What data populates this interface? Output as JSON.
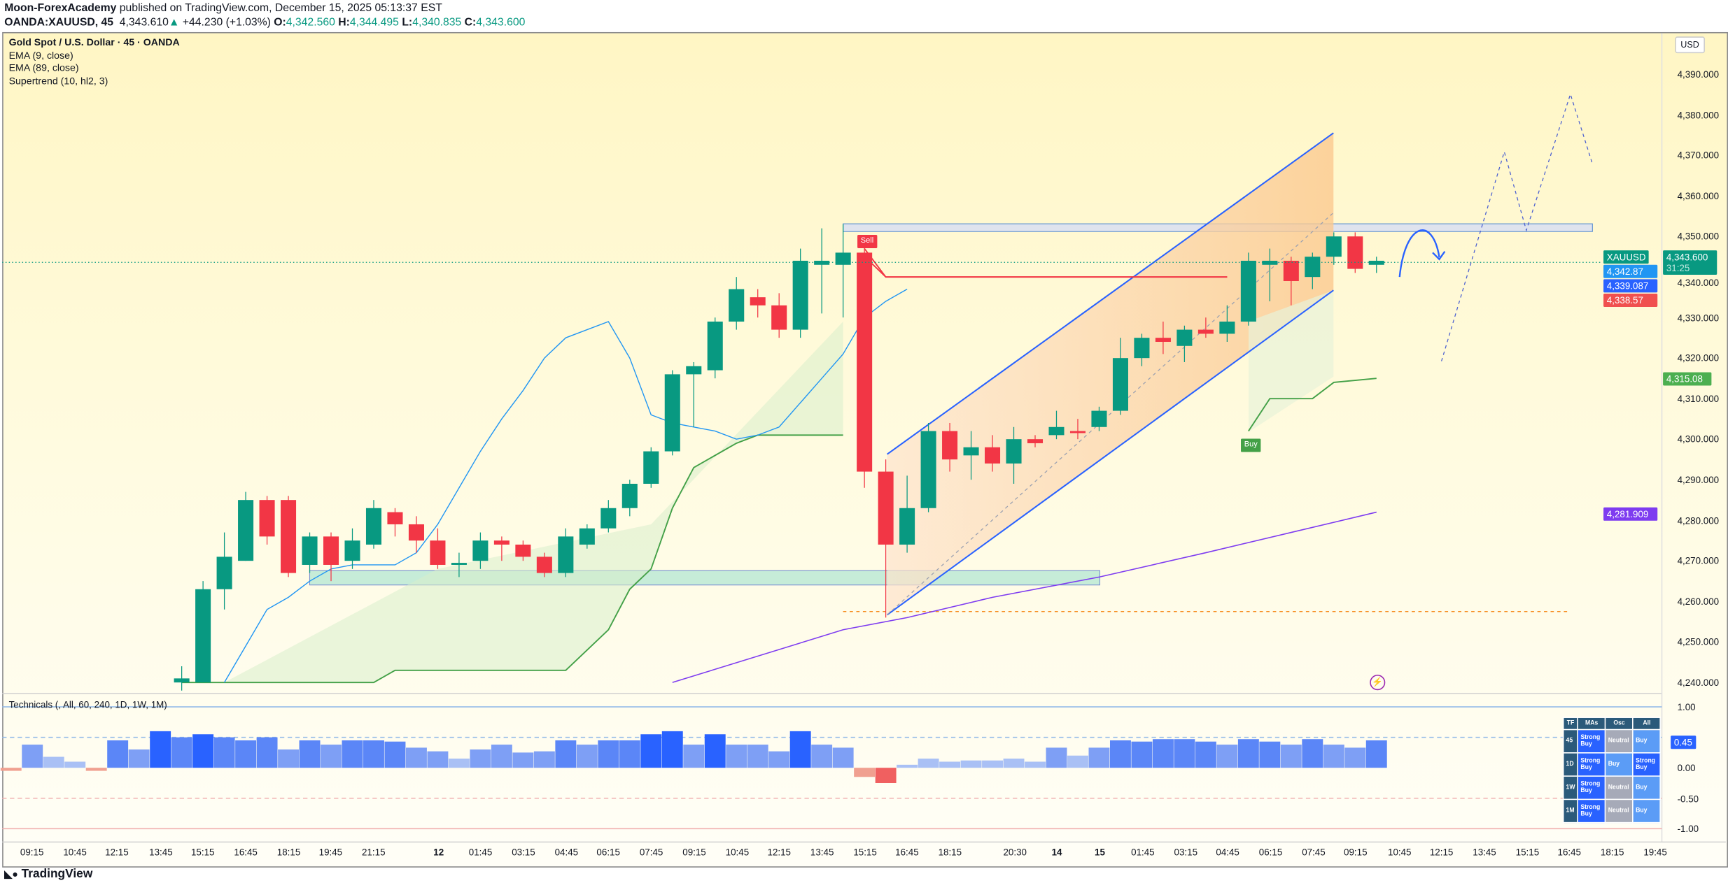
{
  "header": {
    "author": "Moon-ForexAcademy",
    "published": "published on TradingView.com, December 15, 2025 05:13:37 EST",
    "symbol": "OANDA:XAUUSD, 45",
    "last": "4,343.610",
    "arrow": "▲",
    "change": "+44.230 (+1.03%)",
    "o_label": "O:",
    "o": "4,342.560",
    "h_label": "H:",
    "h": "4,344.495",
    "l_label": "L:",
    "l": "4,340.835",
    "c_label": "C:",
    "c": "4,343.600"
  },
  "legend": {
    "title": "Gold Spot / U.S. Dollar · 45 · OANDA",
    "ema9": "EMA (9, close)",
    "ema89": "EMA (89, close)",
    "supertrend": "Supertrend (10, hl2, 3)"
  },
  "currency_button": "USD",
  "price_axis": [
    "4,390.000",
    "4,380.000",
    "4,370.000",
    "4,360.000",
    "4,350.000",
    "4,340.000",
    "4,330.000",
    "4,320.000",
    "4,310.000",
    "4,300.000",
    "4,290.000",
    "4,280.000",
    "4,270.000",
    "4,260.000",
    "4,250.000",
    "4,240.000"
  ],
  "badges": {
    "symbol": "XAUUSD",
    "price": "4,343.600",
    "countdown": "31:25",
    "ema9": "4,342.87",
    "ema89_near": "4,339.087",
    "st_red": "4,338.57",
    "st_green": "4,315.08",
    "ema89": "4,281.909"
  },
  "colors": {
    "up": "#089981",
    "down": "#f23645",
    "ema9": "#2196f3",
    "ema89": "#7e3cf0",
    "st_up": "#43a047",
    "st_down": "#f23645",
    "channel": "#2962ff"
  },
  "labels": {
    "sell": "Sell",
    "buy": "Buy"
  },
  "technicals": {
    "title": "Technicals (, All, 60, 240, 1D, 1W, 1M)",
    "axis": [
      "1.00",
      "0.00",
      "-0.50",
      "-1.00"
    ],
    "current": "0.45",
    "table": {
      "headers": [
        "TF",
        "MAs",
        "Osc",
        "All"
      ],
      "rows": [
        [
          "45",
          "Strong Buy",
          "Neutral",
          "Buy"
        ],
        [
          "1D",
          "Strong Buy",
          "Buy",
          "Strong Buy"
        ],
        [
          "1W",
          "Strong Buy",
          "Neutral",
          "Buy"
        ],
        [
          "1M",
          "Strong Buy",
          "Neutral",
          "Buy"
        ]
      ]
    }
  },
  "time_axis": [
    "09:15",
    "10:45",
    "12:15",
    "13:45",
    "15:15",
    "16:45",
    "18:15",
    "19:45",
    "21:15",
    "12",
    "01:45",
    "03:15",
    "04:45",
    "06:15",
    "07:45",
    "09:15",
    "10:45",
    "12:15",
    "13:45",
    "15:15",
    "16:45",
    "18:15",
    "20:30",
    "14",
    "15",
    "01:45",
    "03:15",
    "04:45",
    "06:15",
    "07:45",
    "09:15",
    "10:45",
    "12:15",
    "13:45",
    "15:15",
    "16:45",
    "18:15",
    "19:45"
  ],
  "brand": "TradingView",
  "chart_data": {
    "type": "candlestick",
    "ylim": [
      4240,
      4390
    ],
    "candles_ohlc": [
      [
        4240,
        4244,
        4238,
        4241
      ],
      [
        4240,
        4265,
        4240,
        4263
      ],
      [
        4263,
        4277,
        4258,
        4271
      ],
      [
        4270,
        4287,
        4270,
        4285
      ],
      [
        4285,
        4286,
        4274,
        4276
      ],
      [
        4285,
        4286,
        4266,
        4267
      ],
      [
        4269,
        4277,
        4267,
        4276
      ],
      [
        4276,
        4277,
        4265,
        4269
      ],
      [
        4270,
        4278,
        4268,
        4275
      ],
      [
        4274,
        4285,
        4273,
        4283
      ],
      [
        4282,
        4283,
        4276,
        4279
      ],
      [
        4279,
        4281,
        4272,
        4275
      ],
      [
        4275,
        4278,
        4268,
        4269
      ],
      [
        4269,
        4272,
        4266,
        4269.5
      ],
      [
        4270,
        4277,
        4268,
        4275
      ],
      [
        4275,
        4276,
        4270,
        4274
      ],
      [
        4274,
        4275,
        4270,
        4271
      ],
      [
        4271,
        4272,
        4266,
        4267
      ],
      [
        4267,
        4278,
        4266,
        4276
      ],
      [
        4274,
        4279,
        4273,
        4278
      ],
      [
        4278,
        4285,
        4277,
        4283
      ],
      [
        4283,
        4290,
        4281,
        4289
      ],
      [
        4289,
        4298,
        4288,
        4297
      ],
      [
        4297,
        4317,
        4296,
        4316
      ],
      [
        4316,
        4319,
        4303,
        4318
      ],
      [
        4317,
        4330,
        4315,
        4329
      ],
      [
        4329,
        4340,
        4327,
        4337
      ],
      [
        4335,
        4337,
        4330,
        4333
      ],
      [
        4333,
        4336,
        4325,
        4327
      ],
      [
        4327,
        4347,
        4325,
        4344
      ],
      [
        4343,
        4352,
        4331,
        4344
      ],
      [
        4343,
        4353,
        4330,
        4346
      ],
      [
        4346,
        4349,
        4288,
        4292
      ],
      [
        4292,
        4295,
        4256,
        4274
      ],
      [
        4274,
        4291,
        4272,
        4283
      ],
      [
        4283,
        4304,
        4282,
        4302
      ],
      [
        4302,
        4304,
        4292,
        4295
      ],
      [
        4296,
        4302,
        4290,
        4298
      ],
      [
        4298,
        4301,
        4292,
        4294
      ],
      [
        4294,
        4303,
        4289,
        4300
      ],
      [
        4300,
        4301,
        4298,
        4299
      ],
      [
        4301,
        4307,
        4300,
        4303
      ],
      [
        4302,
        4305,
        4300,
        4301.5
      ],
      [
        4303,
        4308,
        4302,
        4307
      ],
      [
        4307,
        4325,
        4306,
        4320
      ],
      [
        4320,
        4326,
        4318,
        4325
      ],
      [
        4325,
        4329,
        4321,
        4324
      ],
      [
        4323,
        4328,
        4319,
        4327
      ],
      [
        4327,
        4330,
        4325,
        4326
      ],
      [
        4326,
        4333,
        4324,
        4329
      ],
      [
        4329,
        4346,
        4328,
        4344
      ],
      [
        4343,
        4347,
        4334,
        4344
      ],
      [
        4344,
        4345,
        4333,
        4339
      ],
      [
        4340,
        4346,
        4337,
        4345
      ],
      [
        4345,
        4351,
        4343,
        4350
      ],
      [
        4350,
        4351,
        4341,
        4342
      ],
      [
        4343,
        4345,
        4341,
        4344
      ]
    ],
    "ema9": [
      4240,
      4249,
      4258,
      4261,
      4265,
      4268,
      4269,
      4269,
      4269,
      4272,
      4279,
      4288,
      4297,
      4305,
      4312,
      4320,
      4325,
      4327,
      4329,
      4320,
      4306,
      4304,
      4303,
      4302,
      4300,
      4301,
      4303,
      4309,
      4315,
      4321,
      4330,
      4334,
      4337
    ],
    "ema89": [
      4240,
      4253,
      4256,
      4261,
      4266,
      4272,
      4277,
      4282
    ],
    "supertrend_up_1": [
      4240,
      4240,
      4243,
      4243,
      4248,
      4253,
      4263,
      4268,
      4283,
      4293,
      4296,
      4299,
      4301,
      4301
    ],
    "supertrend_down": [
      4347,
      4340,
      4340
    ],
    "supertrend_up_2": [
      4302,
      4310,
      4310,
      4314,
      4315
    ],
    "technicals_values": [
      -0.05,
      0.38,
      0.18,
      0.1,
      -0.05,
      0.45,
      0.3,
      0.6,
      0.5,
      0.55,
      0.5,
      0.45,
      0.5,
      0.3,
      0.45,
      0.38,
      0.45,
      0.45,
      0.43,
      0.33,
      0.27,
      0.15,
      0.3,
      0.38,
      0.25,
      0.27,
      0.45,
      0.38,
      0.45,
      0.45,
      0.55,
      0.6,
      0.38,
      0.55,
      0.38,
      0.38,
      0.27,
      0.6,
      0.38,
      0.33,
      -0.15,
      -0.25,
      0.05,
      0.15,
      0.1,
      0.12,
      0.12,
      0.15,
      0.1,
      0.33,
      0.2,
      0.33,
      0.45,
      0.43,
      0.47,
      0.47,
      0.43,
      0.38,
      0.47,
      0.43,
      0.38,
      0.47,
      0.38,
      0.33,
      0.45
    ]
  }
}
